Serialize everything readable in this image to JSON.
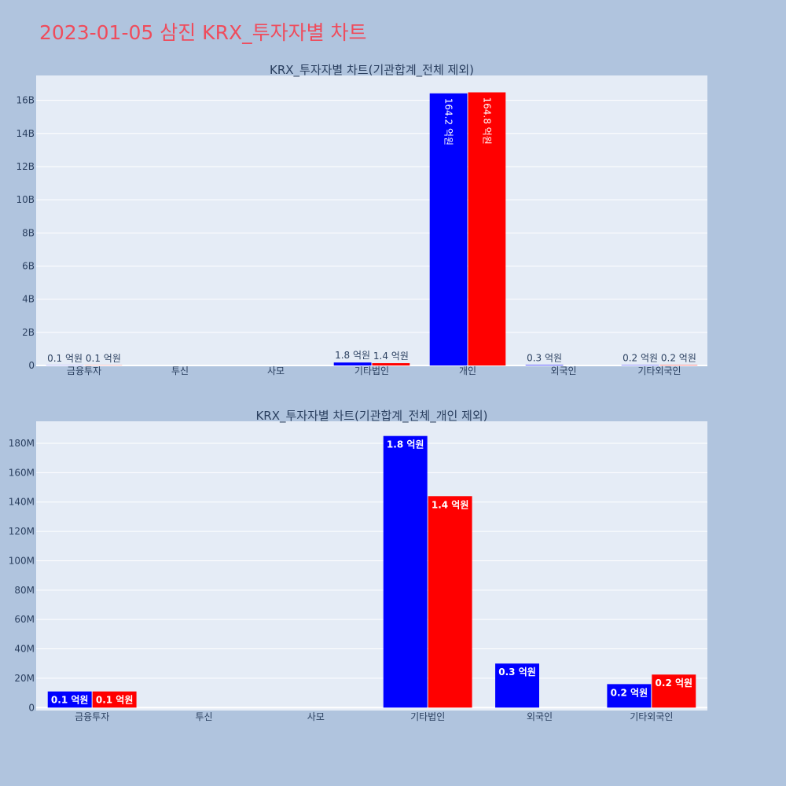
{
  "title": "2023-01-05 삼진 KRX_투자자별 차트",
  "colors": {
    "buy": "#0000ff",
    "sell": "#ff0000",
    "plot_bg": "#e5ecf6",
    "page_bg": "#b0c4de",
    "title": "#ef4c5c"
  },
  "chart_data": [
    {
      "type": "bar",
      "title": "KRX_투자자별 차트(기관합계_전체 제외)",
      "categories": [
        "금융투자",
        "투신",
        "사모",
        "기타법인",
        "개인",
        "외국인",
        "기타외국인"
      ],
      "series": [
        {
          "values": [
            10000000,
            0,
            0,
            180000000,
            16420000000,
            30000000,
            20000000
          ],
          "labels": [
            "0.1 억원",
            "",
            "",
            "1.8 억원",
            "164.2 억원",
            "0.3 억원",
            "0.2 억원"
          ]
        },
        {
          "values": [
            10000000,
            0,
            0,
            140000000,
            16480000000,
            0,
            20000000
          ],
          "labels": [
            "0.1 억원",
            "",
            "",
            "1.4 억원",
            "164.8 억원",
            "",
            "0.2 억원"
          ]
        }
      ],
      "ylim": [
        0,
        17500000000
      ],
      "yticks": [
        0,
        2000000000,
        4000000000,
        6000000000,
        8000000000,
        10000000000,
        12000000000,
        14000000000,
        16000000000
      ],
      "ytick_labels": [
        "0",
        "2B",
        "4B",
        "6B",
        "8B",
        "10B",
        "12B",
        "14B",
        "16B"
      ],
      "grid": true
    },
    {
      "type": "bar",
      "title": "KRX_투자자별 차트(기관합계_전체_개인 제외)",
      "categories": [
        "금융투자",
        "투신",
        "사모",
        "기타법인",
        "외국인",
        "기타외국인"
      ],
      "series": [
        {
          "values": [
            11000000,
            0,
            0,
            185000000,
            30000000,
            16000000
          ],
          "labels": [
            "0.1 억원",
            "",
            "",
            "1.8 억원",
            "0.3 억원",
            "0.2 억원"
          ]
        },
        {
          "values": [
            11000000,
            0,
            0,
            144000000,
            0,
            22500000
          ],
          "labels": [
            "0.1 억원",
            "",
            "",
            "1.4 억원",
            "",
            "0.2 억원"
          ]
        }
      ],
      "ylim": [
        -2000000,
        195000000
      ],
      "yticks": [
        0,
        20000000,
        40000000,
        60000000,
        80000000,
        100000000,
        120000000,
        140000000,
        160000000,
        180000000
      ],
      "ytick_labels": [
        "0",
        "20M",
        "40M",
        "60M",
        "80M",
        "100M",
        "120M",
        "140M",
        "160M",
        "180M"
      ],
      "grid": true
    }
  ]
}
